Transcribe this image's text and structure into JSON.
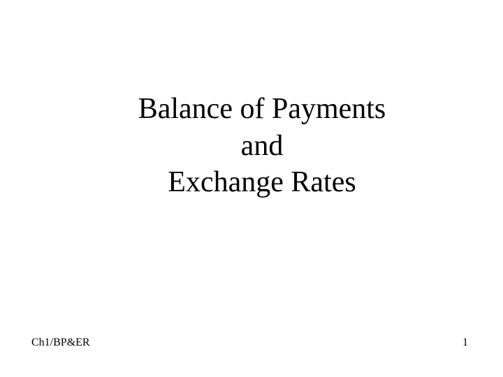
{
  "slide": {
    "title_line1": "Balance of Payments",
    "title_line2": "and",
    "title_line3": "Exchange Rates",
    "footer_left": "Ch1/BP&ER",
    "page_number": "1",
    "background_color": "#ffffff",
    "text_color": "#000000",
    "title_fontsize": 42,
    "footer_fontsize": 16,
    "font_family": "Times New Roman"
  }
}
